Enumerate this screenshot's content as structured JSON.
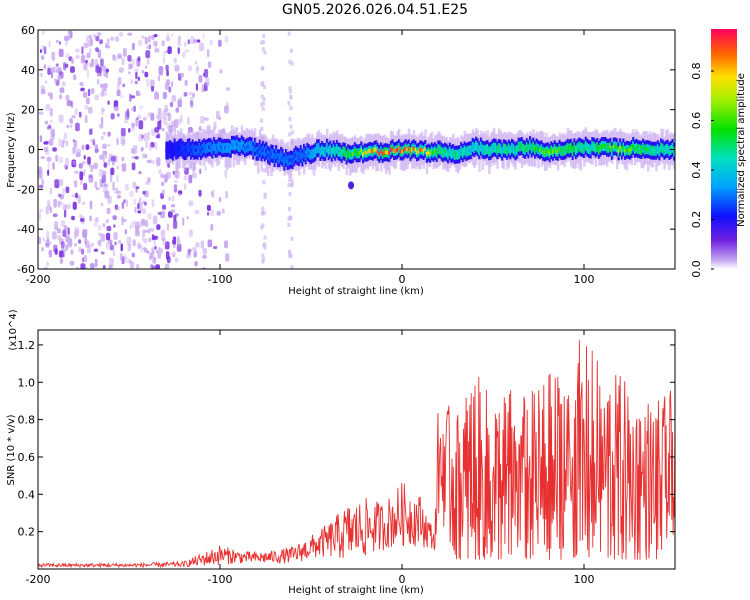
{
  "title": "GN05.2026.026.04.51.E25",
  "chart_data": [
    {
      "type": "heatmap",
      "xlabel": "Height of straight line (km)",
      "ylabel": "Frequency (Hz)",
      "xlim": [
        -200,
        150
      ],
      "ylim": [
        -60,
        60
      ],
      "xticks": [
        "-200",
        "-100",
        "0",
        "100"
      ],
      "yticks": [
        "60",
        "40",
        "20",
        "0",
        "-20",
        "-40",
        "-60"
      ],
      "colorbar": {
        "label": "Normalized spectral amplitude",
        "ticks": [
          "0.0",
          "0.2",
          "0.4",
          "0.6",
          "0.8"
        ],
        "range": [
          0,
          0.97
        ],
        "colormap": "rainbow"
      },
      "ridge": {
        "x": [
          -130,
          -110,
          -90,
          -80,
          -65,
          -55,
          -45,
          -35,
          -30,
          -20,
          -10,
          0,
          10,
          20,
          30,
          40,
          50,
          60,
          70,
          80,
          90,
          100,
          110,
          120,
          130,
          140,
          150
        ],
        "freq": [
          0,
          0,
          2,
          0,
          -5,
          -3,
          0,
          -1,
          -2,
          -1,
          -1,
          0,
          -1,
          -1,
          -2,
          1,
          0,
          0,
          1,
          -1,
          0,
          1,
          1,
          0,
          1,
          0,
          0
        ],
        "peak_amplitude": [
          0.2,
          0.3,
          0.35,
          0.3,
          0.3,
          0.3,
          0.4,
          0.5,
          0.6,
          0.8,
          0.95,
          0.95,
          0.9,
          0.6,
          0.5,
          0.45,
          0.5,
          0.5,
          0.6,
          0.7,
          0.6,
          0.5,
          0.6,
          0.7,
          0.6,
          0.5,
          0.5
        ]
      },
      "noise_region": {
        "x_from": -200,
        "x_to": -105,
        "max_amplitude": 0.1
      },
      "colors": {
        "noise": "#8a40e0",
        "low": "#3010f0"
      }
    },
    {
      "type": "line",
      "xlabel": "Height of straight line (km)",
      "ylabel": "SNR (10 * v/v)",
      "multiplier": "(x10^4)",
      "xlim": [
        -200,
        150
      ],
      "ylim": [
        0,
        1.28
      ],
      "xticks": [
        "-200",
        "-100",
        "0",
        "100"
      ],
      "yticks": [
        "1.2",
        "1.0",
        "0.8",
        "0.6",
        "0.4",
        "0.2"
      ],
      "color": "#e83030",
      "series": [
        {
          "envelope_x": [
            -200,
            -150,
            -120,
            -100,
            -90,
            -80,
            -70,
            -60,
            -50,
            -40,
            -30,
            -20,
            -10,
            0,
            10,
            18,
            20,
            30,
            40,
            50,
            60,
            70,
            80,
            90,
            100,
            110,
            120,
            130,
            140,
            150
          ],
          "envelope_low": [
            0.01,
            0.01,
            0.01,
            0.02,
            0.03,
            0.03,
            0.03,
            0.03,
            0.05,
            0.06,
            0.04,
            0.06,
            0.1,
            0.12,
            0.12,
            0.1,
            0.3,
            0.05,
            0.05,
            0.05,
            0.05,
            0.05,
            0.05,
            0.05,
            0.05,
            0.05,
            0.05,
            0.05,
            0.05,
            0.2
          ],
          "envelope_high": [
            0.03,
            0.03,
            0.04,
            0.13,
            0.1,
            0.09,
            0.1,
            0.12,
            0.18,
            0.25,
            0.35,
            0.38,
            0.36,
            0.47,
            0.4,
            0.2,
            0.92,
            0.85,
            1.06,
            0.92,
            0.98,
            0.95,
            1.05,
            1.1,
            1.27,
            1.08,
            1.05,
            0.95,
            0.9,
            0.98
          ]
        }
      ]
    }
  ]
}
